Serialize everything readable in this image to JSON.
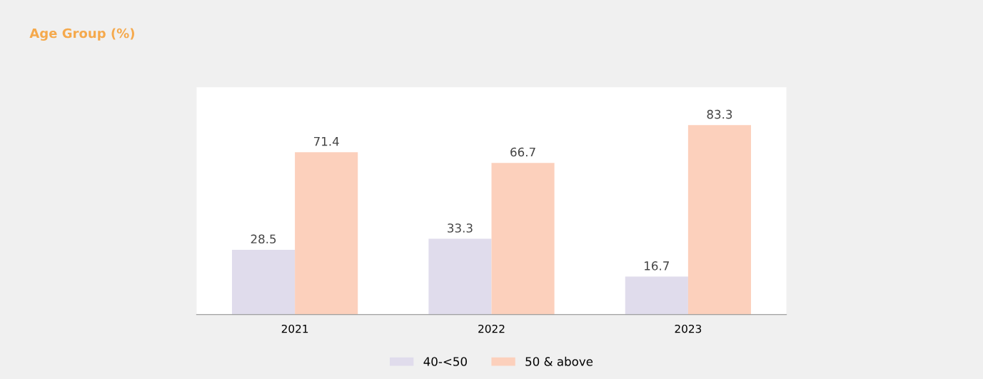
{
  "chart_data": {
    "type": "bar",
    "title": "Age Group (%)",
    "categories": [
      "2021",
      "2022",
      "2023"
    ],
    "series": [
      {
        "name": "40-<50",
        "color": "#e0dcec",
        "values": [
          28.5,
          33.3,
          16.7
        ]
      },
      {
        "name": "50 & above",
        "color": "#fcd0bc",
        "values": [
          71.4,
          66.7,
          83.3
        ]
      }
    ],
    "data_labels": true,
    "legend": "bottom",
    "grid": false
  }
}
